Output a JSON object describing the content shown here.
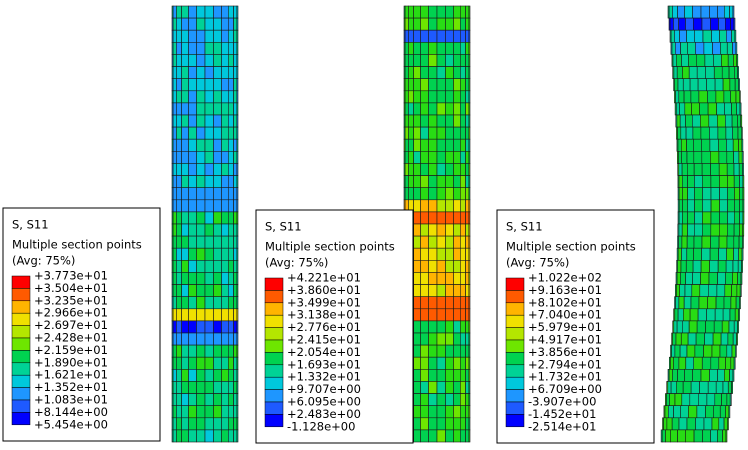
{
  "panels": [
    {
      "legend": {
        "title": "S, S11",
        "subtitle": "Multiple section points",
        "average": "(Avg: 75%)",
        "values": [
          "+3.773e+01",
          "+3.504e+01",
          "+3.235e+01",
          "+2.966e+01",
          "+2.697e+01",
          "+2.428e+01",
          "+2.159e+01",
          "+1.890e+01",
          "+1.621e+01",
          "+1.352e+01",
          "+1.083e+01",
          "+8.144e+00",
          "+5.454e+00"
        ]
      }
    },
    {
      "legend": {
        "title": "S, S11",
        "subtitle": "Multiple section points",
        "average": "(Avg: 75%)",
        "values": [
          "+4.221e+01",
          "+3.860e+01",
          "+3.499e+01",
          "+3.138e+01",
          "+2.776e+01",
          "+2.415e+01",
          "+2.054e+01",
          "+1.693e+01",
          "+1.332e+01",
          "+9.707e+00",
          "+6.095e+00",
          "+2.483e+00",
          "-1.128e+00"
        ]
      }
    },
    {
      "legend": {
        "title": "S, S11",
        "subtitle": "Multiple section points",
        "average": "(Avg: 75%)",
        "values": [
          "+1.022e+02",
          "+9.163e+01",
          "+8.102e+01",
          "+7.040e+01",
          "+5.979e+01",
          "+4.917e+01",
          "+3.856e+01",
          "+2.794e+01",
          "+1.732e+01",
          "+6.709e+00",
          "-3.907e+00",
          "-1.452e+01",
          "-2.514e+01"
        ]
      }
    }
  ]
}
